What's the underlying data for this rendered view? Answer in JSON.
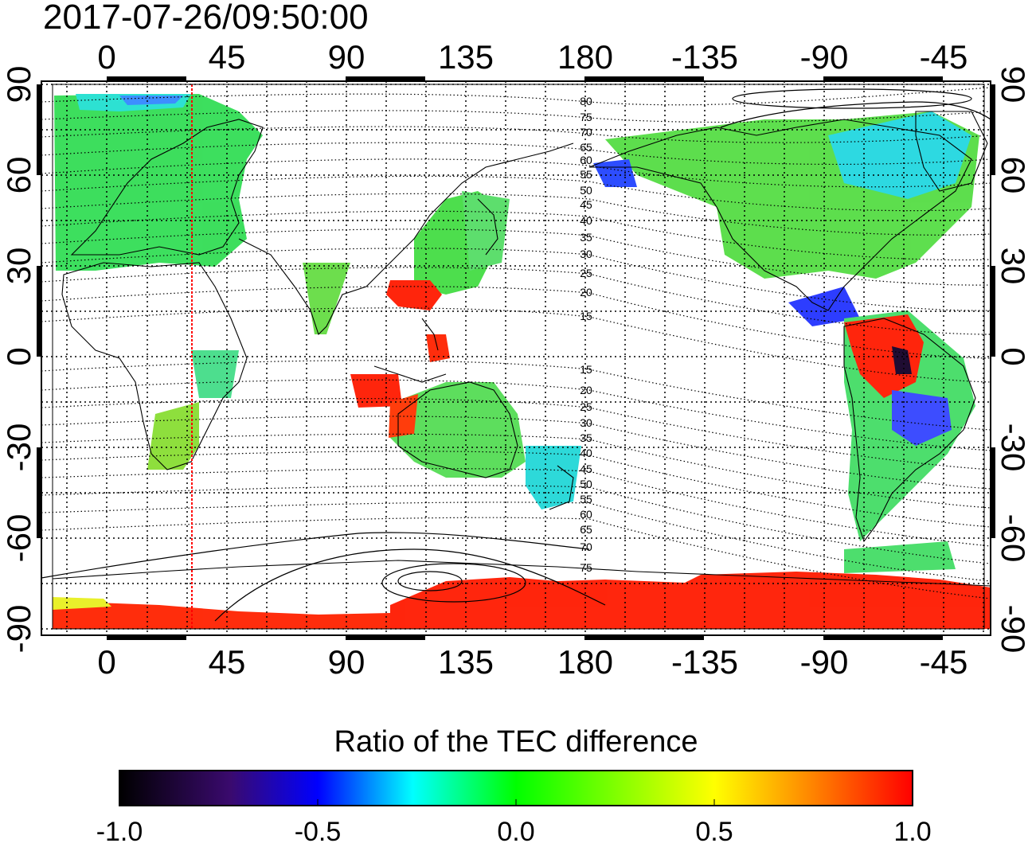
{
  "timestamp": "2017-07-26/09:50:00",
  "top_axis_labels": [
    "0",
    "45",
    "90",
    "135",
    "180",
    "-135",
    "-90",
    "-45"
  ],
  "bottom_axis_labels": [
    "0",
    "45",
    "90",
    "135",
    "180",
    "-135",
    "-90",
    "-45"
  ],
  "left_axis_labels": [
    "90",
    "60",
    "30",
    "0",
    "-30",
    "-60",
    "-90"
  ],
  "right_axis_labels": [
    "90",
    "60",
    "30",
    "0",
    "-30",
    "-60",
    "-90"
  ],
  "contour_labels_north": [
    "80",
    "75",
    "70",
    "65",
    "60",
    "55",
    "50",
    "45",
    "40",
    "35",
    "30",
    "25",
    "20",
    "15"
  ],
  "contour_labels_south": [
    "15",
    "20",
    "25",
    "30",
    "35",
    "40",
    "45",
    "50",
    "55",
    "60",
    "65",
    "70",
    "75"
  ],
  "colorbar": {
    "title": "Ratio of the TEC difference",
    "ticks": [
      "-1.0",
      "-0.5",
      "0.0",
      "0.5",
      "1.0"
    ],
    "min": -1.0,
    "max": 1.0,
    "stops": [
      "#000000",
      "#3a0a6e",
      "#0000ff",
      "#00ffff",
      "#00ff00",
      "#ffff00",
      "#ff8800",
      "#ff0000"
    ]
  },
  "colors": {
    "frame": "#000000",
    "grid": "#000000",
    "marker_line": "#ff0000",
    "data_green": "#33dd55",
    "data_cyan": "#22e0d0",
    "data_blue": "#2255ff",
    "data_red": "#ff1a00",
    "data_yellow": "#e8f020"
  }
}
